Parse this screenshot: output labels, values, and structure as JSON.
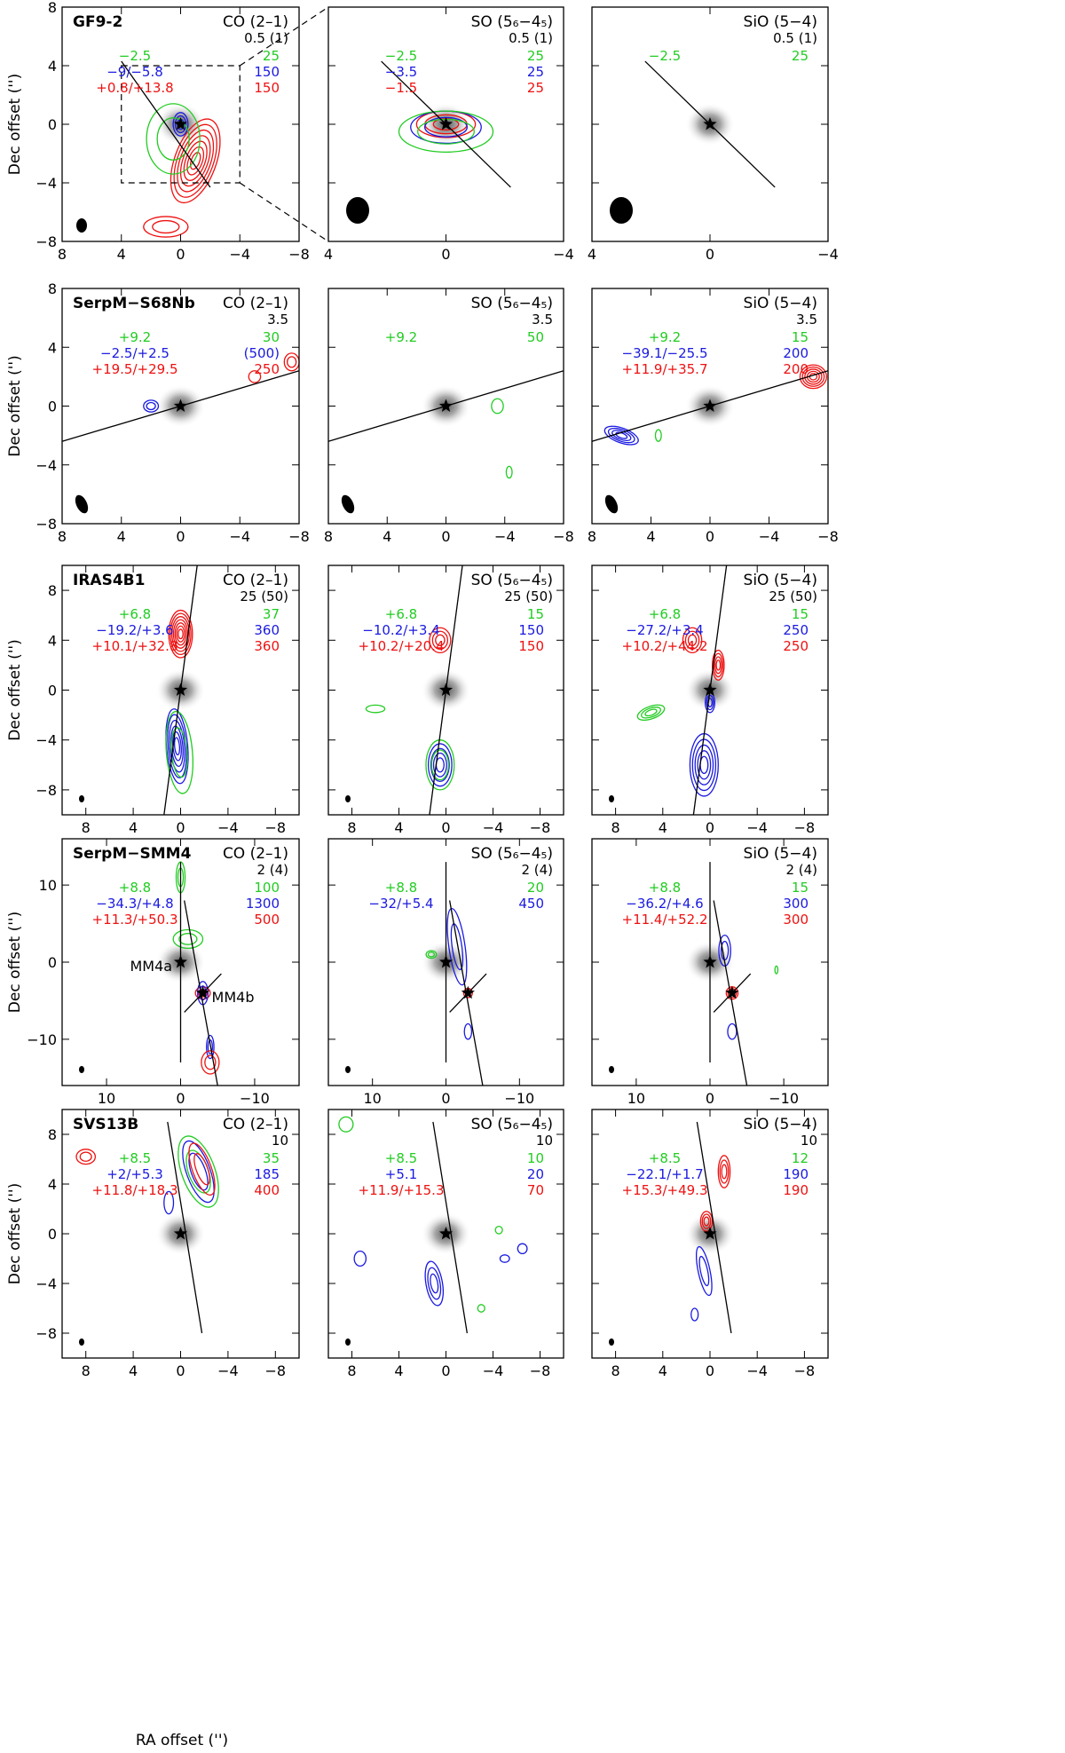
{
  "figure": {
    "ylabel": "Dec offset ('')",
    "xlabel": "RA offset ('')",
    "colors": {
      "green": "#22cc22",
      "blue": "#1a1ae0",
      "red": "#ee1111",
      "black": "#000000",
      "gray": "#b8b8b8"
    }
  },
  "rows": [
    {
      "source": "GF9-2",
      "panels": [
        {
          "line": "CO (2–1)",
          "sigma": "0.5 (1)",
          "legend": [
            [
              "−2.5",
              "25"
            ],
            [
              "−9/−5.8",
              "150"
            ],
            [
              "+0.8/+13.8",
              "150"
            ]
          ]
        },
        {
          "line": "SO (5₆−4₅)",
          "sigma": "0.5 (1)",
          "legend": [
            [
              "−2.5",
              "25"
            ],
            [
              "−3.5",
              "25"
            ],
            [
              "−1.5",
              "25"
            ]
          ]
        },
        {
          "line": "SiO (5−4)",
          "sigma": "0.5 (1)",
          "legend": [
            [
              "−2.5",
              "25"
            ]
          ]
        }
      ],
      "xticks": [
        [
          "8",
          "4",
          "0",
          "−4",
          "−8"
        ],
        [
          "4",
          "0",
          "−4"
        ],
        [
          "4",
          "0",
          "−4"
        ]
      ],
      "yticks": [
        "8",
        "4",
        "0",
        "−4",
        "−8"
      ]
    },
    {
      "source": "SerpM−S68Nb",
      "panels": [
        {
          "line": "CO (2–1)",
          "sigma": "3.5",
          "legend": [
            [
              "+9.2",
              "30"
            ],
            [
              "−2.5/+2.5",
              "(500)"
            ],
            [
              "+19.5/+29.5",
              "250"
            ]
          ]
        },
        {
          "line": "SO (5₆−4₅)",
          "sigma": "3.5",
          "legend": [
            [
              "+9.2",
              "50"
            ]
          ]
        },
        {
          "line": "SiO (5−4)",
          "sigma": "3.5",
          "legend": [
            [
              "+9.2",
              "15"
            ],
            [
              "−39.1/−25.5",
              "200"
            ],
            [
              "+11.9/+35.7",
              "200"
            ]
          ]
        }
      ],
      "xticks": [
        [
          "8",
          "4",
          "0",
          "−4",
          "−8"
        ],
        [
          "8",
          "4",
          "0",
          "−4",
          "−8"
        ],
        [
          "8",
          "4",
          "0",
          "−4",
          "−8"
        ]
      ],
      "yticks": [
        "8",
        "4",
        "0",
        "−4",
        "−8"
      ]
    },
    {
      "source": "IRAS4B1",
      "panels": [
        {
          "line": "CO (2–1)",
          "sigma": "25 (50)",
          "legend": [
            [
              "+6.8",
              "37"
            ],
            [
              "−19.2/+3.6",
              "360"
            ],
            [
              "+10.1/+32.8",
              "360"
            ]
          ]
        },
        {
          "line": "SO (5₆−4₅)",
          "sigma": "25 (50)",
          "legend": [
            [
              "+6.8",
              "15"
            ],
            [
              "−10.2/+3.4",
              "150"
            ],
            [
              "+10.2/+20.4",
              "150"
            ]
          ]
        },
        {
          "line": "SiO (5−4)",
          "sigma": "25 (50)",
          "legend": [
            [
              "+6.8",
              "15"
            ],
            [
              "−27.2/+3.4",
              "250"
            ],
            [
              "+10.2/+44.2",
              "250"
            ]
          ]
        }
      ],
      "xticks": [
        [
          "8",
          "4",
          "0",
          "−4",
          "−8"
        ],
        [
          "8",
          "4",
          "0",
          "−4",
          "−8"
        ],
        [
          "8",
          "4",
          "0",
          "−4",
          "−8"
        ]
      ],
      "yticks": [
        "8",
        "4",
        "0",
        "−4",
        "−8"
      ]
    },
    {
      "source": "SerpM−SMM4",
      "panels": [
        {
          "line": "CO (2–1)",
          "sigma": "2 (4)",
          "legend": [
            [
              "+8.8",
              "100"
            ],
            [
              "−34.3/+4.8",
              "1300"
            ],
            [
              "+11.3/+50.3",
              "500"
            ]
          ],
          "labels": [
            "MM4a",
            "MM4b"
          ]
        },
        {
          "line": "SO (5₆−4₅)",
          "sigma": "2 (4)",
          "legend": [
            [
              "+8.8",
              "20"
            ],
            [
              "−32/+5.4",
              "450"
            ]
          ]
        },
        {
          "line": "SiO (5−4)",
          "sigma": "2 (4)",
          "legend": [
            [
              "+8.8",
              "15"
            ],
            [
              "−36.2/+4.6",
              "300"
            ],
            [
              "+11.4/+52.2",
              "300"
            ]
          ]
        }
      ],
      "xticks": [
        [
          "10",
          "0",
          "−10"
        ],
        [
          "10",
          "0",
          "−10"
        ],
        [
          "10",
          "0",
          "−10"
        ]
      ],
      "yticks": [
        "10",
        "0",
        "−10"
      ]
    },
    {
      "source": "SVS13B",
      "panels": [
        {
          "line": "CO (2–1)",
          "sigma": "10",
          "legend": [
            [
              "+8.5",
              "35"
            ],
            [
              "+2/+5.3",
              "185"
            ],
            [
              "+11.8/+18.3",
              "400"
            ]
          ]
        },
        {
          "line": "SO (5₆−4₅)",
          "sigma": "10",
          "legend": [
            [
              "+8.5",
              "10"
            ],
            [
              "+5.1",
              "20"
            ],
            [
              "+11.9/+15.3",
              "70"
            ]
          ]
        },
        {
          "line": "SiO (5−4)",
          "sigma": "10",
          "legend": [
            [
              "+8.5",
              "12"
            ],
            [
              "−22.1/+1.7",
              "190"
            ],
            [
              "+15.3/+49.3",
              "190"
            ]
          ]
        }
      ],
      "xticks": [
        [
          "8",
          "4",
          "0",
          "−4",
          "−8"
        ],
        [
          "8",
          "4",
          "0",
          "−4",
          "−8"
        ],
        [
          "8",
          "4",
          "0",
          "−4",
          "−8"
        ]
      ],
      "yticks": [
        "8",
        "4",
        "0",
        "−4",
        "−8"
      ]
    }
  ]
}
